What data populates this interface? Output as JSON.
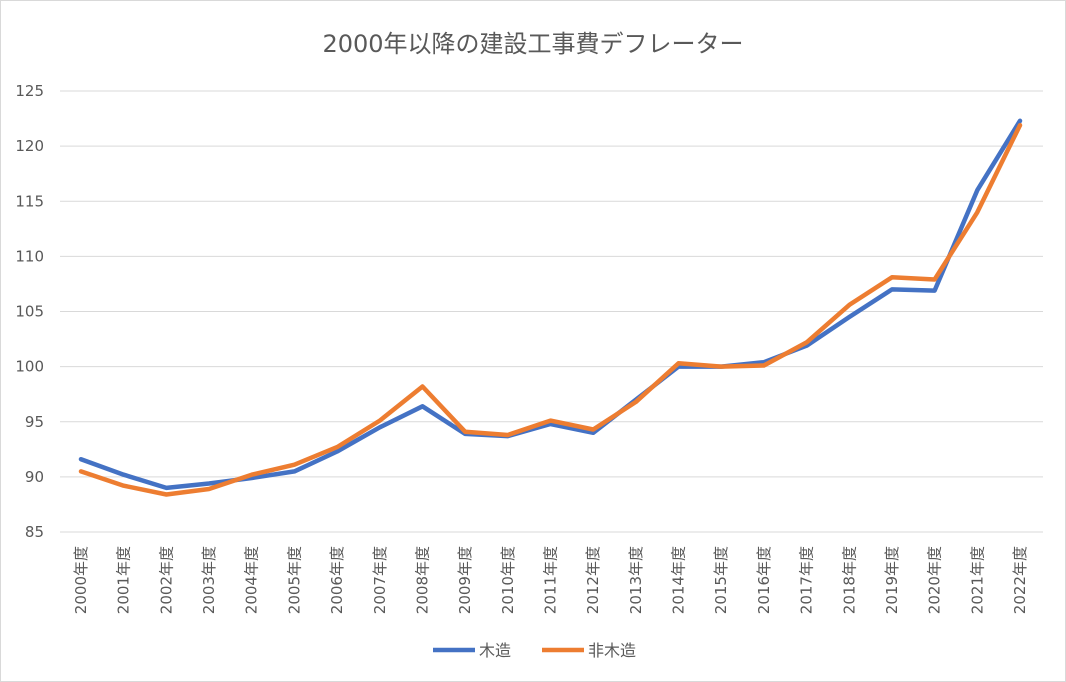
{
  "chart_data": {
    "type": "line",
    "title": "2000年以降の建設工事費デフレーター",
    "xlabel": "",
    "ylabel": "",
    "categories": [
      "2000年度",
      "2001年度",
      "2002年度",
      "2003年度",
      "2004年度",
      "2005年度",
      "2006年度",
      "2007年度",
      "2008年度",
      "2009年度",
      "2010年度",
      "2011年度",
      "2012年度",
      "2013年度",
      "2014年度",
      "2015年度",
      "2016年度",
      "2017年度",
      "2018年度",
      "2019年度",
      "2020年度",
      "2021年度",
      "2022年度"
    ],
    "ylim": [
      85,
      125
    ],
    "yticks": [
      85,
      90,
      95,
      100,
      105,
      110,
      115,
      120,
      125
    ],
    "grid": true,
    "legend": "bottom",
    "series": [
      {
        "name": "木造",
        "color": "#4472C4",
        "values": [
          91.6,
          90.2,
          89.0,
          89.4,
          89.9,
          90.5,
          92.3,
          94.5,
          96.4,
          93.9,
          93.7,
          94.8,
          94.0,
          97.0,
          100.0,
          100.0,
          100.4,
          101.9,
          104.5,
          107.0,
          106.9,
          116.0,
          122.3
        ]
      },
      {
        "name": "非木造",
        "color": "#ED7D31",
        "values": [
          90.5,
          89.2,
          88.4,
          88.9,
          90.2,
          91.1,
          92.7,
          95.1,
          98.2,
          94.1,
          93.8,
          95.1,
          94.3,
          96.8,
          100.3,
          100.0,
          100.1,
          102.2,
          105.6,
          108.1,
          107.9,
          114.0,
          121.9
        ]
      }
    ]
  }
}
